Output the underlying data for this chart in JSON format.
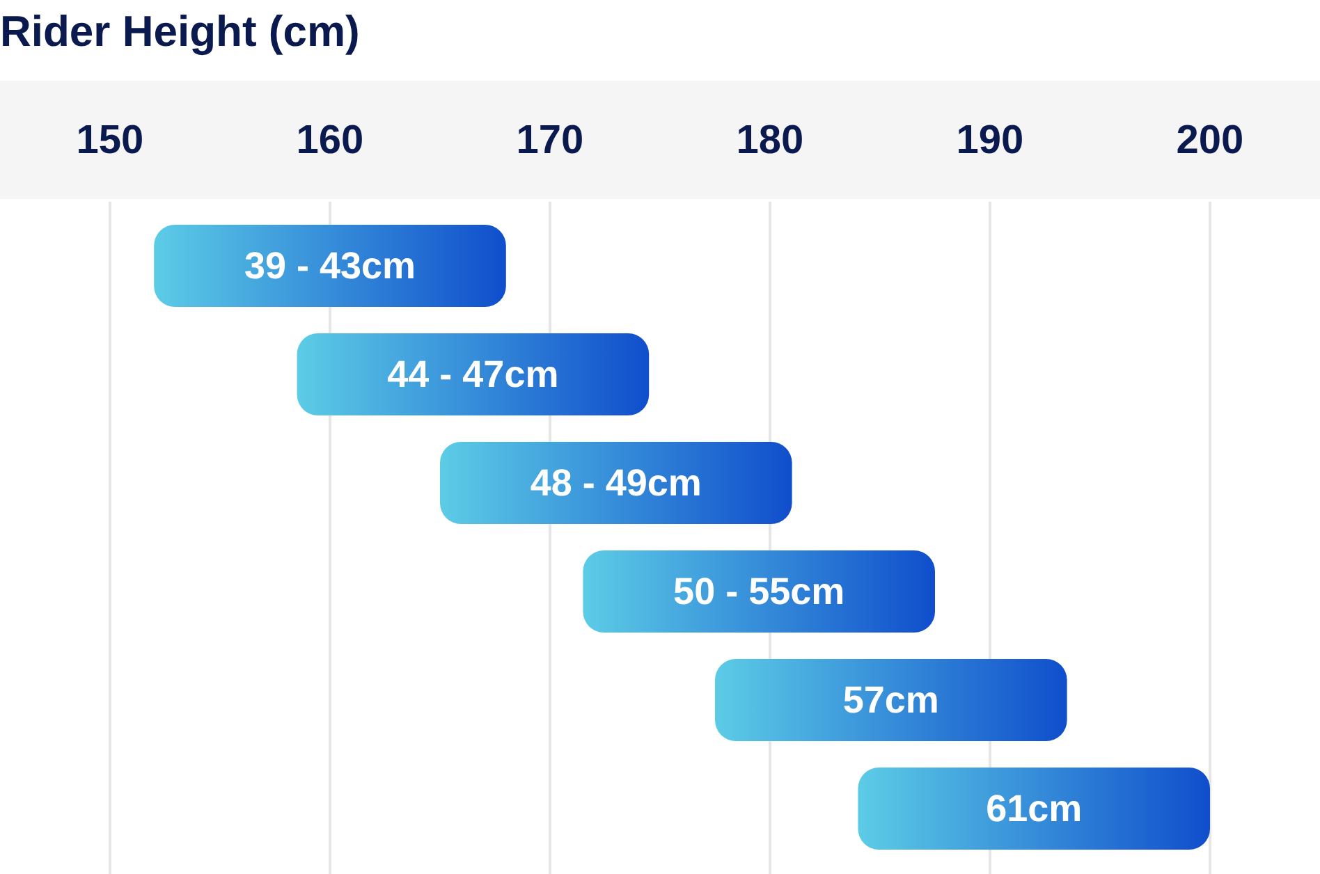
{
  "chart_data": {
    "type": "bar",
    "orientation": "horizontal",
    "title": "Rider Height (cm)",
    "categories": [
      "39 - 43cm",
      "44 - 47cm",
      "48 - 49cm",
      "50 - 55cm",
      "57cm",
      "61cm"
    ],
    "base": [
      152,
      158.5,
      165,
      171.5,
      177.5,
      184
    ],
    "values": [
      16,
      16,
      16,
      16,
      16,
      16
    ],
    "color": "#3a8fda",
    "xlim": [
      145,
      205
    ],
    "xticks": [
      150,
      160,
      170,
      180,
      190,
      200
    ],
    "grid": "x"
  }
}
